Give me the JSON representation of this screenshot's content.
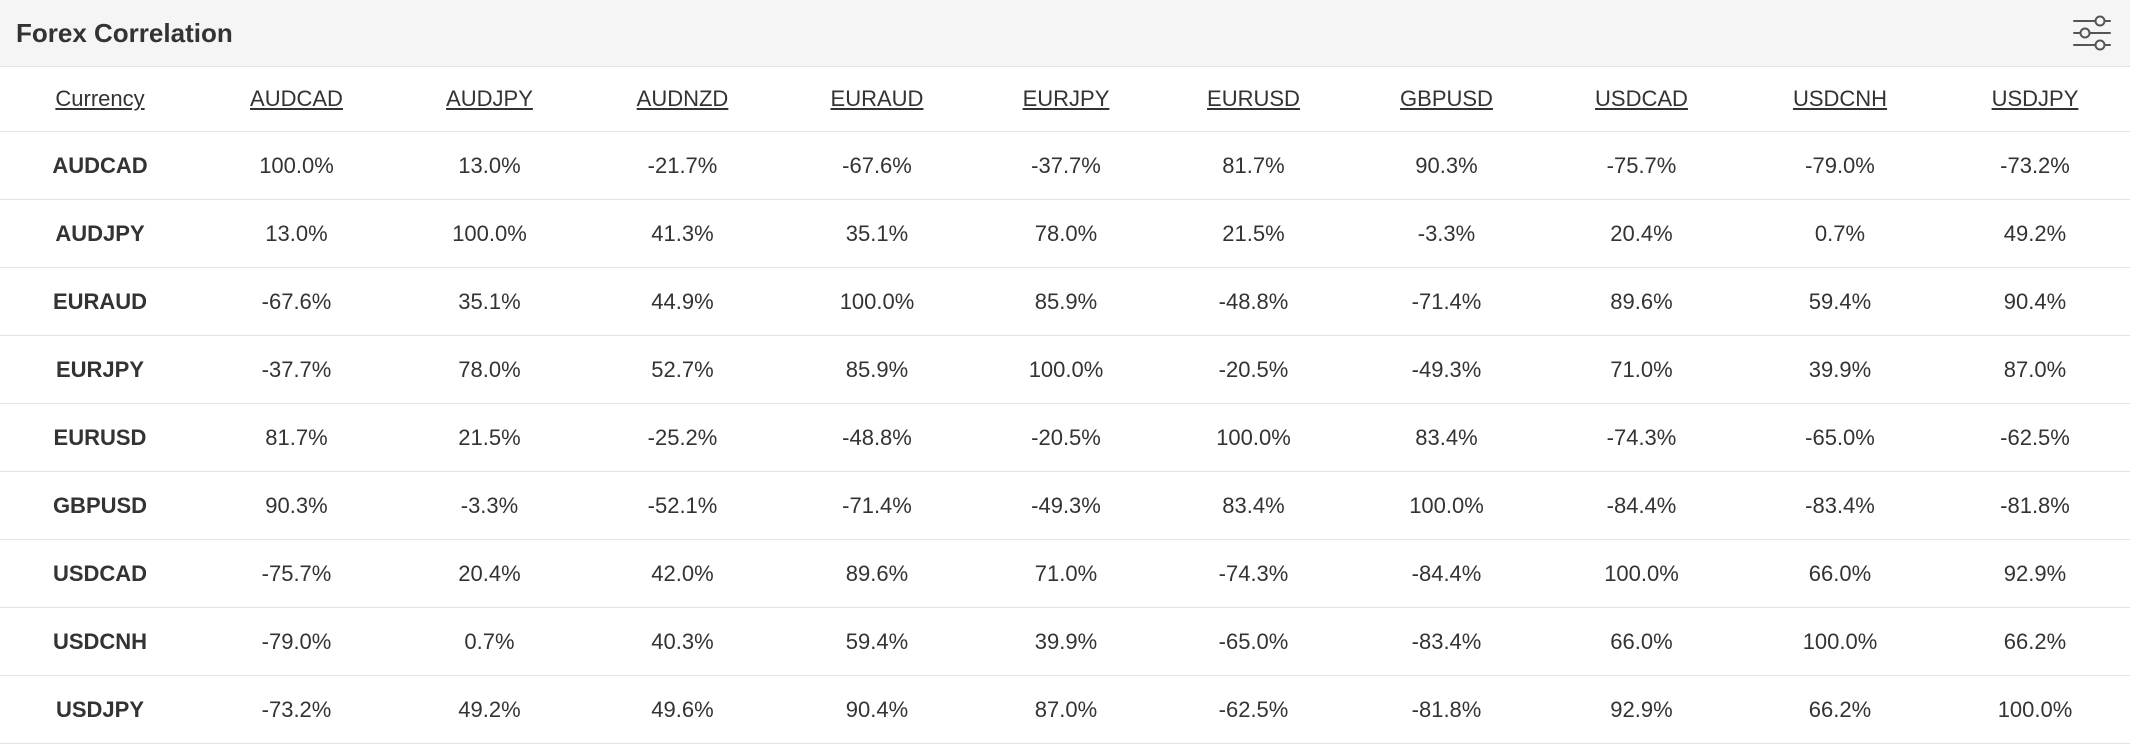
{
  "widget": {
    "title": "Forex Correlation",
    "settings_icon": "sliders-icon"
  },
  "table": {
    "corner_header": "Currency",
    "columns": [
      "AUDCAD",
      "AUDJPY",
      "AUDNZD",
      "EURAUD",
      "EURJPY",
      "EURUSD",
      "GBPUSD",
      "USDCAD",
      "USDCNH",
      "USDJPY"
    ],
    "rows": [
      {
        "label": "AUDCAD",
        "values": [
          "100.0%",
          "13.0%",
          "-21.7%",
          "-67.6%",
          "-37.7%",
          "81.7%",
          "90.3%",
          "-75.7%",
          "-79.0%",
          "-73.2%"
        ]
      },
      {
        "label": "AUDJPY",
        "values": [
          "13.0%",
          "100.0%",
          "41.3%",
          "35.1%",
          "78.0%",
          "21.5%",
          "-3.3%",
          "20.4%",
          "0.7%",
          "49.2%"
        ]
      },
      {
        "label": "EURAUD",
        "values": [
          "-67.6%",
          "35.1%",
          "44.9%",
          "100.0%",
          "85.9%",
          "-48.8%",
          "-71.4%",
          "89.6%",
          "59.4%",
          "90.4%"
        ]
      },
      {
        "label": "EURJPY",
        "values": [
          "-37.7%",
          "78.0%",
          "52.7%",
          "85.9%",
          "100.0%",
          "-20.5%",
          "-49.3%",
          "71.0%",
          "39.9%",
          "87.0%"
        ]
      },
      {
        "label": "EURUSD",
        "values": [
          "81.7%",
          "21.5%",
          "-25.2%",
          "-48.8%",
          "-20.5%",
          "100.0%",
          "83.4%",
          "-74.3%",
          "-65.0%",
          "-62.5%"
        ]
      },
      {
        "label": "GBPUSD",
        "values": [
          "90.3%",
          "-3.3%",
          "-52.1%",
          "-71.4%",
          "-49.3%",
          "83.4%",
          "100.0%",
          "-84.4%",
          "-83.4%",
          "-81.8%"
        ]
      },
      {
        "label": "USDCAD",
        "values": [
          "-75.7%",
          "20.4%",
          "42.0%",
          "89.6%",
          "71.0%",
          "-74.3%",
          "-84.4%",
          "100.0%",
          "66.0%",
          "92.9%"
        ]
      },
      {
        "label": "USDCNH",
        "values": [
          "-79.0%",
          "0.7%",
          "40.3%",
          "59.4%",
          "39.9%",
          "-65.0%",
          "-83.4%",
          "66.0%",
          "100.0%",
          "66.2%"
        ]
      },
      {
        "label": "USDJPY",
        "values": [
          "-73.2%",
          "49.2%",
          "49.6%",
          "90.4%",
          "87.0%",
          "-62.5%",
          "-81.8%",
          "92.9%",
          "66.2%",
          "100.0%"
        ]
      }
    ]
  }
}
